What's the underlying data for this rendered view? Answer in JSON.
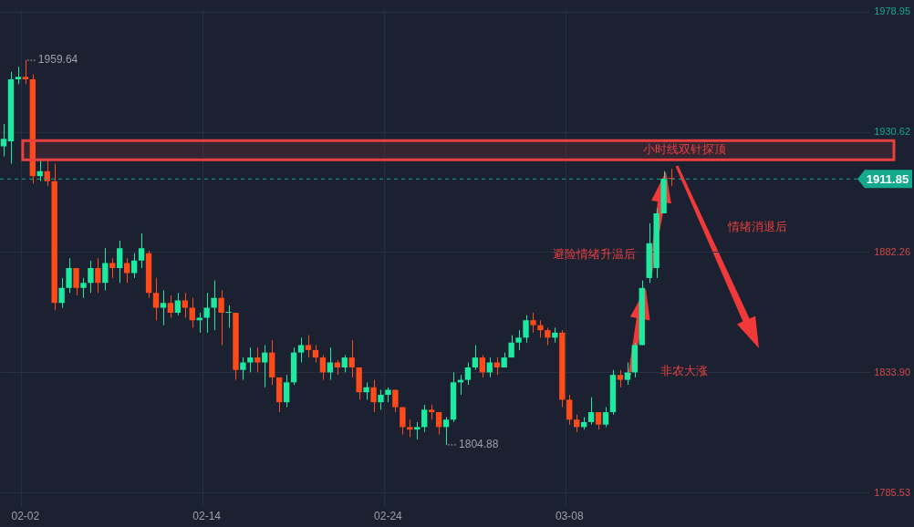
{
  "chart_data": {
    "type": "candlestick",
    "categories": [
      null,
      null,
      null,
      "02-02",
      null,
      null,
      null,
      null,
      null,
      null,
      null,
      null,
      null,
      null,
      null,
      null,
      null,
      null,
      null,
      null,
      null,
      null,
      null,
      null,
      null,
      null,
      null,
      null,
      "02-14",
      null,
      null,
      null,
      null,
      null,
      null,
      null,
      null,
      null,
      null,
      null,
      null,
      null,
      null,
      null,
      null,
      null,
      null,
      null,
      null,
      null,
      null,
      null,
      null,
      "02-24",
      null,
      null,
      null,
      null,
      null,
      null,
      null,
      null,
      null,
      null,
      null,
      null,
      null,
      null,
      null,
      null,
      null,
      null,
      null,
      null,
      null,
      null,
      null,
      null,
      "03-08",
      null,
      null,
      null,
      null,
      null,
      null,
      null,
      null,
      null,
      null,
      null,
      null,
      null,
      null,
      null,
      null,
      null,
      null,
      null,
      null,
      null,
      null,
      null,
      null,
      null,
      null,
      null,
      null,
      null,
      null,
      null,
      null,
      null,
      null,
      null,
      null,
      null,
      null,
      null,
      null,
      null
    ],
    "ohlc": [
      [
        1925,
        1934,
        1921,
        1928
      ],
      [
        1927,
        1955,
        1918,
        1952
      ],
      [
        1952,
        1957,
        1950,
        1953
      ],
      [
        1953,
        1959.64,
        1950,
        1952
      ],
      [
        1952,
        1954,
        1910,
        1913
      ],
      [
        1913,
        1920,
        1911,
        1915
      ],
      [
        1915,
        1920,
        1909,
        1911
      ],
      [
        1911,
        1918,
        1859,
        1862
      ],
      [
        1862,
        1872,
        1860,
        1868
      ],
      [
        1868,
        1880,
        1866,
        1876
      ],
      [
        1876,
        1876,
        1865,
        1868
      ],
      [
        1868,
        1872,
        1864,
        1870
      ],
      [
        1870,
        1879,
        1866,
        1876
      ],
      [
        1876,
        1880,
        1866,
        1870
      ],
      [
        1870,
        1884,
        1867,
        1878
      ],
      [
        1878,
        1880,
        1872,
        1876
      ],
      [
        1876,
        1887,
        1870,
        1884
      ],
      [
        1878,
        1880,
        1870,
        1874
      ],
      [
        1874,
        1882,
        1872,
        1879
      ],
      [
        1879,
        1890,
        1876,
        1884
      ],
      [
        1882,
        1883,
        1864,
        1866
      ],
      [
        1866,
        1872,
        1855,
        1860
      ],
      [
        1860,
        1867,
        1853,
        1862
      ],
      [
        1862,
        1865,
        1856,
        1858
      ],
      [
        1858,
        1866,
        1857,
        1863
      ],
      [
        1863,
        1866,
        1856,
        1860
      ],
      [
        1860,
        1864,
        1852,
        1855
      ],
      [
        1855,
        1858,
        1850,
        1856
      ],
      [
        1856,
        1866,
        1850,
        1860
      ],
      [
        1860,
        1871,
        1851,
        1864
      ],
      [
        1864,
        1867,
        1845,
        1858
      ],
      [
        1858,
        1861,
        1852,
        1858
      ],
      [
        1858,
        1858,
        1831,
        1835
      ],
      [
        1835,
        1840,
        1831,
        1838
      ],
      [
        1838,
        1844,
        1834,
        1840
      ],
      [
        1840,
        1844,
        1834,
        1838
      ],
      [
        1838,
        1845,
        1828,
        1842
      ],
      [
        1842,
        1847,
        1829,
        1832
      ],
      [
        1832,
        1832,
        1818,
        1822
      ],
      [
        1822,
        1833,
        1820,
        1830
      ],
      [
        1830,
        1844,
        1829,
        1842
      ],
      [
        1842,
        1848,
        1838,
        1845
      ],
      [
        1845,
        1849,
        1840,
        1843
      ],
      [
        1843,
        1845,
        1838,
        1840
      ],
      [
        1840,
        1841,
        1831,
        1834
      ],
      [
        1834,
        1844,
        1831,
        1838
      ],
      [
        1838,
        1839,
        1833,
        1836
      ],
      [
        1836,
        1841,
        1834,
        1840
      ],
      [
        1840,
        1847,
        1832,
        1836
      ],
      [
        1836,
        1836,
        1823,
        1826
      ],
      [
        1826,
        1830,
        1823,
        1828
      ],
      [
        1828,
        1831,
        1818,
        1822
      ],
      [
        1822,
        1827,
        1819,
        1825
      ],
      [
        1825,
        1828,
        1822,
        1827
      ],
      [
        1827,
        1827,
        1818,
        1820
      ],
      [
        1820,
        1820,
        1809,
        1812
      ],
      [
        1812,
        1815,
        1808,
        1811
      ],
      [
        1811,
        1814,
        1807,
        1812
      ],
      [
        1812,
        1821,
        1810,
        1819
      ],
      [
        1819,
        1821,
        1815,
        1818
      ],
      [
        1818,
        1818,
        1809,
        1812
      ],
      [
        1812,
        1816,
        1804.88,
        1815
      ],
      [
        1815,
        1834,
        1814,
        1830
      ],
      [
        1830,
        1833,
        1825,
        1831
      ],
      [
        1831,
        1838,
        1829,
        1836
      ],
      [
        1836,
        1845,
        1835,
        1840
      ],
      [
        1840,
        1841,
        1832,
        1834
      ],
      [
        1834,
        1840,
        1832,
        1838
      ],
      [
        1838,
        1840,
        1833,
        1836
      ],
      [
        1836,
        1842,
        1836,
        1840
      ],
      [
        1840,
        1849,
        1840,
        1846
      ],
      [
        1846,
        1851,
        1843,
        1848
      ],
      [
        1848,
        1857,
        1846,
        1855
      ],
      [
        1855,
        1858,
        1850,
        1853
      ],
      [
        1853,
        1855,
        1848,
        1851
      ],
      [
        1851,
        1852,
        1845,
        1848
      ],
      [
        1848,
        1852,
        1846,
        1850
      ],
      [
        1850,
        1851,
        1820,
        1823
      ],
      [
        1823,
        1825,
        1813,
        1815
      ],
      [
        1815,
        1817,
        1810,
        1812
      ],
      [
        1812,
        1816,
        1811,
        1814
      ],
      [
        1814,
        1824,
        1813,
        1818
      ],
      [
        1818,
        1818,
        1811,
        1813
      ],
      [
        1813,
        1820,
        1812,
        1818
      ],
      [
        1818,
        1835,
        1817,
        1833
      ],
      [
        1833,
        1835,
        1828,
        1831
      ],
      [
        1831,
        1838,
        1829,
        1834
      ],
      [
        1834,
        1846,
        1832,
        1845
      ],
      [
        1845,
        1871,
        1845,
        1868
      ],
      [
        1872,
        1894,
        1870,
        1886
      ],
      [
        1876,
        1900,
        1872,
        1898
      ],
      [
        1898,
        1915,
        1898,
        1912
      ],
      [
        1912,
        1916,
        1909,
        1911.85
      ],
      null,
      null,
      null,
      null,
      null,
      null,
      null,
      null,
      null,
      null,
      null,
      null,
      null,
      null,
      null,
      null,
      null,
      null,
      null,
      null,
      null,
      null,
      null,
      null,
      null,
      null,
      null
    ],
    "ylim": [
      1780,
      1980
    ],
    "yticks": [
      1978.95,
      1930.62,
      1882.26,
      {
        "value": 1833.9,
        "label": "1833.90"
      },
      1785.53
    ],
    "grid": true,
    "ref_lines": [
      {
        "axis": "y",
        "value": 1911.85,
        "label": "1911.85",
        "color": "#14a88c",
        "line_style": "dashed"
      }
    ],
    "bands": [
      {
        "axis": "y",
        "from": 1919.6,
        "to": 1927.3,
        "label": "小时线双针探顶",
        "color": "#e84040"
      }
    ],
    "annotations": [
      "1959.64",
      "1804.88",
      "避险情绪升温后",
      "非农大涨",
      "情绪消退后"
    ]
  }
}
